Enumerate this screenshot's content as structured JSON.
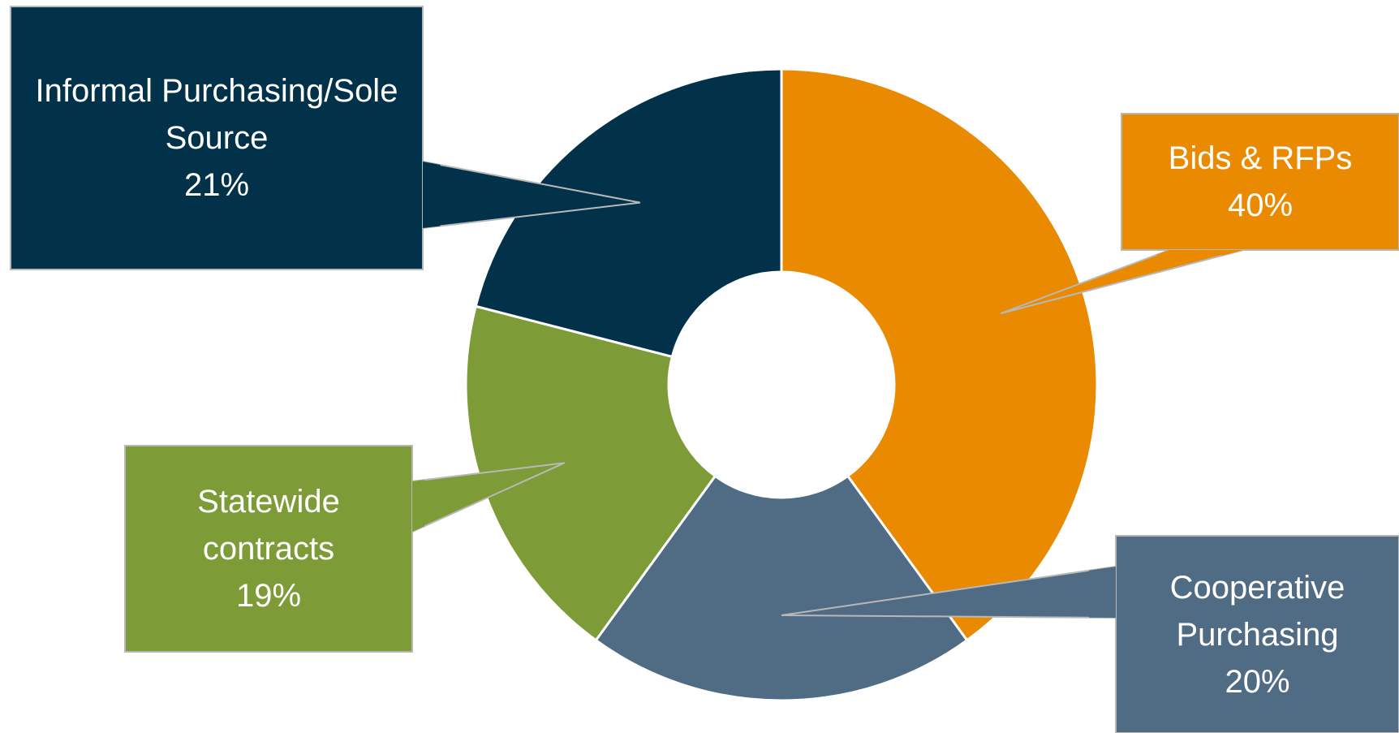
{
  "chart_data": {
    "type": "pie",
    "variant": "donut",
    "title": "",
    "slices": [
      {
        "name": "Bids & RFPs",
        "value": 40,
        "label_lines": [
          "Bids & RFPs",
          "40%"
        ],
        "color": "#EA8A00"
      },
      {
        "name": "Cooperative Purchasing",
        "value": 20,
        "label_lines": [
          "Cooperative",
          "Purchasing",
          "20%"
        ],
        "color": "#506B84"
      },
      {
        "name": "Statewide contracts",
        "value": 19,
        "label_lines": [
          "Statewide",
          "contracts",
          "19%"
        ],
        "color": "#7D9B36"
      },
      {
        "name": "Informal Purchasing/Sole Source",
        "value": 21,
        "label_lines": [
          "Informal Purchasing/Sole",
          "Source",
          "21%"
        ],
        "color": "#02324A"
      }
    ],
    "start_angle": "12 o'clock",
    "direction": "clockwise",
    "legend": "none",
    "data_labels": "callouts"
  }
}
